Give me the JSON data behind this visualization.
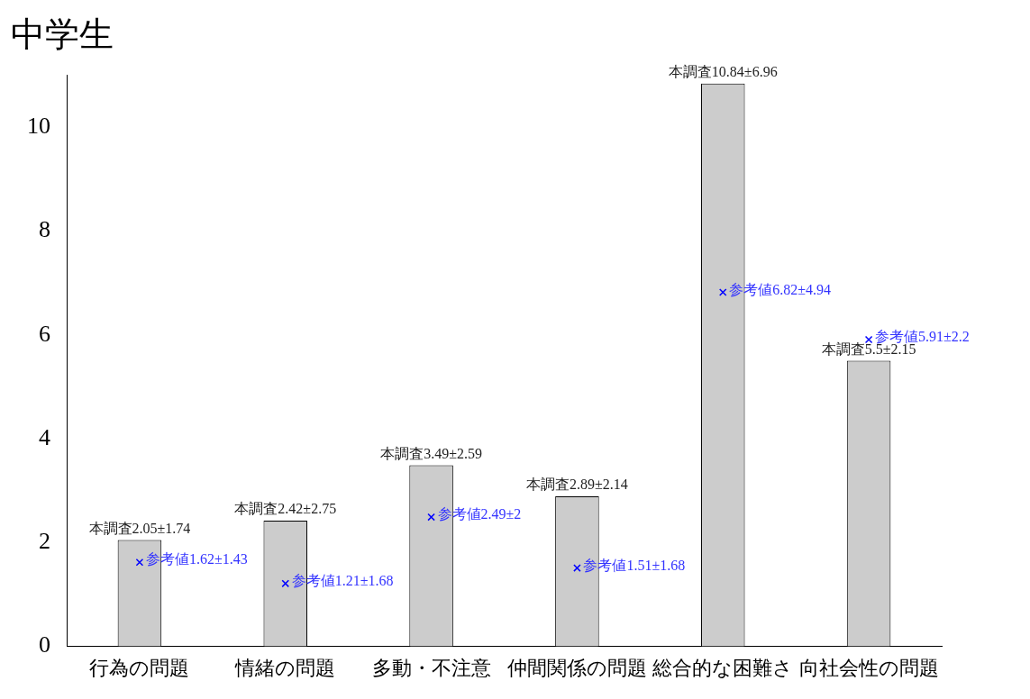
{
  "chart_data": {
    "type": "bar",
    "title": "中学生",
    "categories": [
      "行為の問題",
      "情緒の問題",
      "多動・不注意",
      "仲間関係の問題",
      "総合的な困難さ",
      "向社会性の問題"
    ],
    "series": [
      {
        "color": "#cccccc",
        "values": [
          2.05,
          2.42,
          3.49,
          2.89,
          10.84,
          5.5
        ],
        "value_labels": [
          "本調査2.05±1.74",
          "本調査2.42±2.75",
          "本調査3.49±2.59",
          "本調査2.89±2.14",
          "本調査10.84±6.96",
          "本調査5.5±2.15"
        ]
      },
      {
        "type": "scatter",
        "color": "#0000ff",
        "values": [
          1.62,
          1.21,
          2.49,
          1.51,
          6.82,
          5.91
        ],
        "value_labels": [
          "参考値1.62±1.43",
          "参考値1.21±1.68",
          "参考値2.49±2",
          "参考値1.51±1.68",
          "参考値6.82±4.94",
          "参考値5.91±2.2"
        ]
      }
    ],
    "marker": "cross",
    "ylim": [
      0,
      11
    ],
    "yticks": [
      0,
      2,
      4,
      6,
      8,
      10
    ],
    "grid": false,
    "legend": false
  }
}
